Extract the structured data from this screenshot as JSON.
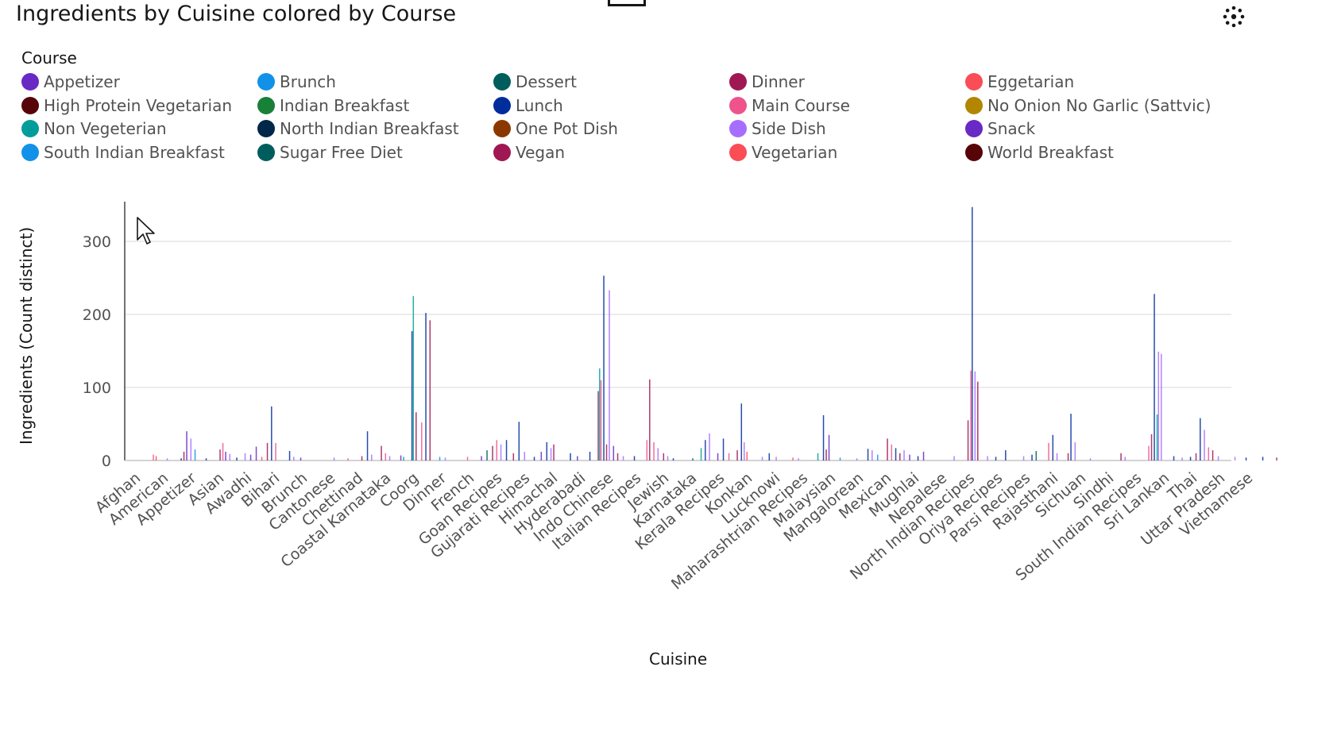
{
  "title": "Ingredients by Cuisine colored by Course",
  "icons": {
    "settings": "settings-icon",
    "cursor": "cursor-arrow-icon"
  },
  "legend": {
    "title": "Course",
    "items": [
      {
        "label": "Appetizer",
        "color": "#6929c4"
      },
      {
        "label": "Brunch",
        "color": "#1192e8"
      },
      {
        "label": "Dessert",
        "color": "#005d5d"
      },
      {
        "label": "Dinner",
        "color": "#9f1853"
      },
      {
        "label": "Eggetarian",
        "color": "#fa4d56"
      },
      {
        "label": "High Protein Vegetarian",
        "color": "#570408"
      },
      {
        "label": "Indian Breakfast",
        "color": "#198038"
      },
      {
        "label": "Lunch",
        "color": "#002d9c"
      },
      {
        "label": "Main Course",
        "color": "#ee538b"
      },
      {
        "label": "No Onion No Garlic (Sattvic)",
        "color": "#b28600"
      },
      {
        "label": "Non Vegeterian",
        "color": "#009d9a"
      },
      {
        "label": "North Indian Breakfast",
        "color": "#012749"
      },
      {
        "label": "One Pot Dish",
        "color": "#8a3800"
      },
      {
        "label": "Side Dish",
        "color": "#a56eff"
      },
      {
        "label": "Snack",
        "color": "#6929c4"
      },
      {
        "label": "South Indian Breakfast",
        "color": "#1192e8"
      },
      {
        "label": "Sugar Free Diet",
        "color": "#005d5d"
      },
      {
        "label": "Vegan",
        "color": "#9f1853"
      },
      {
        "label": "Vegetarian",
        "color": "#fa4d56"
      },
      {
        "label": "World Breakfast",
        "color": "#570408"
      }
    ]
  },
  "chart_data": {
    "type": "bar",
    "title": "Ingredients by Cuisine colored by Course",
    "xlabel": "Cuisine",
    "ylabel": "Ingredients (Count distinct)",
    "ylim": [
      0,
      350
    ],
    "yticks": [
      0,
      100,
      200,
      300
    ],
    "grid": true,
    "legend_position": "top",
    "categories": [
      "Afghan",
      "American",
      "Appetizer",
      "Asian",
      "Awadhi",
      "Bihari",
      "Brunch",
      "Cantonese",
      "Chettinad",
      "Coastal Karnataka",
      "Coorg",
      "Dinner",
      "French",
      "Goan Recipes",
      "Gujarati Recipes",
      "Himachal",
      "Hyderabadi",
      "Indo Chinese",
      "Italian Recipes",
      "Jewish",
      "Karnataka",
      "Kerala Recipes",
      "Konkan",
      "Lucknowi",
      "Maharashtrian Recipes",
      "Malaysian",
      "Mangalorean",
      "Mexican",
      "Mughlai",
      "Nepalese",
      "North Indian Recipes",
      "Oriya Recipes",
      "Parsi Recipes",
      "Rajasthani",
      "Sichuan",
      "Sindhi",
      "South Indian Recipes",
      "Sri Lankan",
      "Thai",
      "Uttar Pradesh",
      "Vietnamese"
    ],
    "bars": [
      {
        "pos": 0.6,
        "series": "Main Course",
        "value": 8
      },
      {
        "pos": 0.7,
        "series": "Vegetarian",
        "value": 6
      },
      {
        "pos": 1.1,
        "series": "Side Dish",
        "value": 3
      },
      {
        "pos": 1.6,
        "series": "Lunch",
        "value": 3
      },
      {
        "pos": 1.7,
        "series": "Dinner",
        "value": 12
      },
      {
        "pos": 1.8,
        "series": "Appetizer",
        "value": 40
      },
      {
        "pos": 1.95,
        "series": "Side Dish",
        "value": 30
      },
      {
        "pos": 2.1,
        "series": "Brunch",
        "value": 15
      },
      {
        "pos": 2.5,
        "series": "Lunch",
        "value": 3
      },
      {
        "pos": 3.0,
        "series": "Dinner",
        "value": 15
      },
      {
        "pos": 3.1,
        "series": "Main Course",
        "value": 24
      },
      {
        "pos": 3.2,
        "series": "Snack",
        "value": 12
      },
      {
        "pos": 3.35,
        "series": "Side Dish",
        "value": 9
      },
      {
        "pos": 3.6,
        "series": "Lunch",
        "value": 4
      },
      {
        "pos": 3.9,
        "series": "Side Dish",
        "value": 10
      },
      {
        "pos": 4.1,
        "series": "Snack",
        "value": 8
      },
      {
        "pos": 4.3,
        "series": "Appetizer",
        "value": 19
      },
      {
        "pos": 4.5,
        "series": "Vegetarian",
        "value": 5
      },
      {
        "pos": 4.7,
        "series": "Dinner",
        "value": 24
      },
      {
        "pos": 4.85,
        "series": "Lunch",
        "value": 74
      },
      {
        "pos": 5.0,
        "series": "Main Course",
        "value": 24
      },
      {
        "pos": 5.5,
        "series": "Lunch",
        "value": 13
      },
      {
        "pos": 5.65,
        "series": "Side Dish",
        "value": 5
      },
      {
        "pos": 5.9,
        "series": "Snack",
        "value": 4
      },
      {
        "pos": 7.1,
        "series": "Side Dish",
        "value": 4
      },
      {
        "pos": 7.6,
        "series": "Main Course",
        "value": 3
      },
      {
        "pos": 8.1,
        "series": "Dinner",
        "value": 6
      },
      {
        "pos": 8.3,
        "series": "Lunch",
        "value": 40
      },
      {
        "pos": 8.45,
        "series": "Side Dish",
        "value": 8
      },
      {
        "pos": 8.8,
        "series": "Dinner",
        "value": 20
      },
      {
        "pos": 8.95,
        "series": "Main Course",
        "value": 10
      },
      {
        "pos": 9.1,
        "series": "Side Dish",
        "value": 6
      },
      {
        "pos": 9.5,
        "series": "Snack",
        "value": 7
      },
      {
        "pos": 9.6,
        "series": "Non Vegeterian",
        "value": 5
      },
      {
        "pos": 9.9,
        "series": "Lunch",
        "value": 177
      },
      {
        "pos": 9.95,
        "series": "Non Vegeterian",
        "value": 225
      },
      {
        "pos": 10.05,
        "series": "Dinner",
        "value": 66
      },
      {
        "pos": 10.25,
        "series": "Main Course",
        "value": 52
      },
      {
        "pos": 10.4,
        "series": "Lunch",
        "value": 202
      },
      {
        "pos": 10.55,
        "series": "Dinner",
        "value": 192
      },
      {
        "pos": 10.9,
        "series": "Brunch",
        "value": 5
      },
      {
        "pos": 11.1,
        "series": "Side Dish",
        "value": 4
      },
      {
        "pos": 11.9,
        "series": "Main Course",
        "value": 5
      },
      {
        "pos": 12.4,
        "series": "Snack",
        "value": 6
      },
      {
        "pos": 12.6,
        "series": "Dessert",
        "value": 14
      },
      {
        "pos": 12.8,
        "series": "Dinner",
        "value": 20
      },
      {
        "pos": 12.95,
        "series": "Main Course",
        "value": 28
      },
      {
        "pos": 13.1,
        "series": "Side Dish",
        "value": 22
      },
      {
        "pos": 13.3,
        "series": "Lunch",
        "value": 28
      },
      {
        "pos": 13.55,
        "series": "Dinner",
        "value": 10
      },
      {
        "pos": 13.75,
        "series": "Lunch",
        "value": 53
      },
      {
        "pos": 13.95,
        "series": "Side Dish",
        "value": 12
      },
      {
        "pos": 14.3,
        "series": "Lunch",
        "value": 5
      },
      {
        "pos": 14.55,
        "series": "Snack",
        "value": 12
      },
      {
        "pos": 14.75,
        "series": "Lunch",
        "value": 25
      },
      {
        "pos": 14.9,
        "series": "Side Dish",
        "value": 17
      },
      {
        "pos": 15.0,
        "series": "Dinner",
        "value": 22
      },
      {
        "pos": 15.6,
        "series": "Lunch",
        "value": 10
      },
      {
        "pos": 15.85,
        "series": "Snack",
        "value": 6
      },
      {
        "pos": 16.3,
        "series": "Lunch",
        "value": 12
      },
      {
        "pos": 16.6,
        "series": "Dinner",
        "value": 95
      },
      {
        "pos": 16.65,
        "series": "Non Vegeterian",
        "value": 126
      },
      {
        "pos": 16.7,
        "series": "Main Course",
        "value": 110
      },
      {
        "pos": 16.8,
        "series": "Lunch",
        "value": 253
      },
      {
        "pos": 16.9,
        "series": "Dinner",
        "value": 22
      },
      {
        "pos": 17.0,
        "series": "Side Dish",
        "value": 233
      },
      {
        "pos": 17.15,
        "series": "Snack",
        "value": 20
      },
      {
        "pos": 17.3,
        "series": "Dinner",
        "value": 10
      },
      {
        "pos": 17.5,
        "series": "Side Dish",
        "value": 6
      },
      {
        "pos": 17.9,
        "series": "Lunch",
        "value": 6
      },
      {
        "pos": 18.35,
        "series": "Main Course",
        "value": 28
      },
      {
        "pos": 18.45,
        "series": "Dinner",
        "value": 111
      },
      {
        "pos": 18.6,
        "series": "Main Course",
        "value": 25
      },
      {
        "pos": 18.75,
        "series": "Side Dish",
        "value": 17
      },
      {
        "pos": 18.95,
        "series": "Dinner",
        "value": 10
      },
      {
        "pos": 19.1,
        "series": "Side Dish",
        "value": 6
      },
      {
        "pos": 19.3,
        "series": "Lunch",
        "value": 3
      },
      {
        "pos": 20.0,
        "series": "Dessert",
        "value": 3
      },
      {
        "pos": 20.3,
        "series": "Non Vegeterian",
        "value": 17
      },
      {
        "pos": 20.45,
        "series": "Lunch",
        "value": 28
      },
      {
        "pos": 20.6,
        "series": "Side Dish",
        "value": 37
      },
      {
        "pos": 20.9,
        "series": "Snack",
        "value": 10
      },
      {
        "pos": 21.1,
        "series": "Lunch",
        "value": 30
      },
      {
        "pos": 21.3,
        "series": "Main Course",
        "value": 10
      },
      {
        "pos": 21.6,
        "series": "Dinner",
        "value": 14
      },
      {
        "pos": 21.75,
        "series": "Lunch",
        "value": 78
      },
      {
        "pos": 21.85,
        "series": "Side Dish",
        "value": 25
      },
      {
        "pos": 21.95,
        "series": "Vegetarian",
        "value": 12
      },
      {
        "pos": 22.5,
        "series": "Side Dish",
        "value": 5
      },
      {
        "pos": 22.75,
        "series": "Lunch",
        "value": 10
      },
      {
        "pos": 23.0,
        "series": "Side Dish",
        "value": 5
      },
      {
        "pos": 23.6,
        "series": "Main Course",
        "value": 4
      },
      {
        "pos": 23.8,
        "series": "Side Dish",
        "value": 3
      },
      {
        "pos": 24.5,
        "series": "Non Vegeterian",
        "value": 10
      },
      {
        "pos": 24.7,
        "series": "Lunch",
        "value": 62
      },
      {
        "pos": 24.8,
        "series": "Dinner",
        "value": 15
      },
      {
        "pos": 24.9,
        "series": "Appetizer",
        "value": 35
      },
      {
        "pos": 25.3,
        "series": "Brunch",
        "value": 4
      },
      {
        "pos": 25.9,
        "series": "Side Dish",
        "value": 3
      },
      {
        "pos": 26.3,
        "series": "Lunch",
        "value": 16
      },
      {
        "pos": 26.45,
        "series": "Side Dish",
        "value": 14
      },
      {
        "pos": 26.65,
        "series": "Brunch",
        "value": 8
      },
      {
        "pos": 27.0,
        "series": "Dinner",
        "value": 30
      },
      {
        "pos": 27.15,
        "series": "Main Course",
        "value": 22
      },
      {
        "pos": 27.3,
        "series": "Lunch",
        "value": 17
      },
      {
        "pos": 27.45,
        "series": "Dinner",
        "value": 10
      },
      {
        "pos": 27.6,
        "series": "Side Dish",
        "value": 14
      },
      {
        "pos": 27.8,
        "series": "Snack",
        "value": 8
      },
      {
        "pos": 28.1,
        "series": "Lunch",
        "value": 6
      },
      {
        "pos": 28.3,
        "series": "Appetizer",
        "value": 12
      },
      {
        "pos": 29.4,
        "series": "Side Dish",
        "value": 6
      },
      {
        "pos": 29.9,
        "series": "Dinner",
        "value": 55
      },
      {
        "pos": 30.0,
        "series": "Main Course",
        "value": 123
      },
      {
        "pos": 30.05,
        "series": "Lunch",
        "value": 347
      },
      {
        "pos": 30.15,
        "series": "Side Dish",
        "value": 122
      },
      {
        "pos": 30.25,
        "series": "Dinner",
        "value": 108
      },
      {
        "pos": 30.6,
        "series": "Side Dish",
        "value": 6
      },
      {
        "pos": 30.9,
        "series": "Lunch",
        "value": 5
      },
      {
        "pos": 31.25,
        "series": "Lunch",
        "value": 14
      },
      {
        "pos": 31.9,
        "series": "Side Dish",
        "value": 6
      },
      {
        "pos": 32.2,
        "series": "Lunch",
        "value": 8
      },
      {
        "pos": 32.35,
        "series": "Dessert",
        "value": 13
      },
      {
        "pos": 32.8,
        "series": "Main Course",
        "value": 24
      },
      {
        "pos": 32.95,
        "series": "Lunch",
        "value": 35
      },
      {
        "pos": 33.1,
        "series": "Side Dish",
        "value": 10
      },
      {
        "pos": 33.5,
        "series": "Dinner",
        "value": 10
      },
      {
        "pos": 33.6,
        "series": "Lunch",
        "value": 64
      },
      {
        "pos": 33.75,
        "series": "Side Dish",
        "value": 25
      },
      {
        "pos": 34.3,
        "series": "Side Dish",
        "value": 3
      },
      {
        "pos": 35.4,
        "series": "Dinner",
        "value": 10
      },
      {
        "pos": 35.55,
        "series": "Side Dish",
        "value": 5
      },
      {
        "pos": 36.4,
        "series": "Main Course",
        "value": 20
      },
      {
        "pos": 36.5,
        "series": "Dinner",
        "value": 36
      },
      {
        "pos": 36.6,
        "series": "Lunch",
        "value": 228
      },
      {
        "pos": 36.7,
        "series": "Non Vegeterian",
        "value": 63
      },
      {
        "pos": 36.75,
        "series": "Side Dish",
        "value": 149
      },
      {
        "pos": 36.85,
        "series": "Side Dish",
        "value": 146
      },
      {
        "pos": 37.3,
        "series": "Lunch",
        "value": 6
      },
      {
        "pos": 37.6,
        "series": "Side Dish",
        "value": 4
      },
      {
        "pos": 37.9,
        "series": "Lunch",
        "value": 5
      },
      {
        "pos": 38.1,
        "series": "Dinner",
        "value": 10
      },
      {
        "pos": 38.25,
        "series": "Lunch",
        "value": 58
      },
      {
        "pos": 38.4,
        "series": "Side Dish",
        "value": 42
      },
      {
        "pos": 38.55,
        "series": "Main Course",
        "value": 18
      },
      {
        "pos": 38.7,
        "series": "Dinner",
        "value": 14
      },
      {
        "pos": 38.9,
        "series": "Side Dish",
        "value": 6
      },
      {
        "pos": 39.5,
        "series": "Side Dish",
        "value": 5
      },
      {
        "pos": 39.9,
        "series": "Lunch",
        "value": 4
      },
      {
        "pos": 40.5,
        "series": "Lunch",
        "value": 5
      },
      {
        "pos": 41.0,
        "series": "Dinner",
        "value": 4
      }
    ]
  }
}
